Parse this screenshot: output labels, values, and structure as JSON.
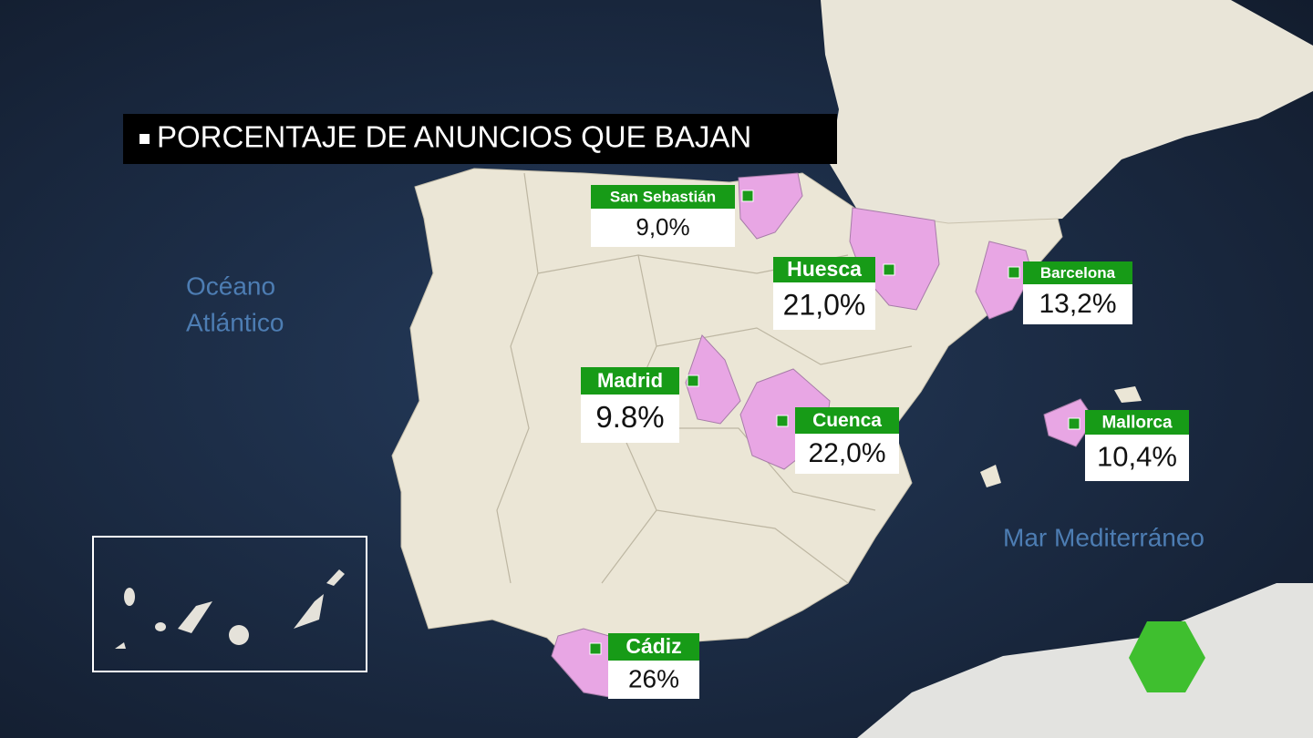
{
  "title": "PORCENTAJE DE ANUNCIOS QUE BAJAN",
  "ocean_labels": [
    "Océano",
    "Atlántico",
    "Mar Mediterráneo"
  ],
  "places": [
    {
      "name": "San Sebastián",
      "value": "9,0%"
    },
    {
      "name": "Huesca",
      "value": "21,0%"
    },
    {
      "name": "Barcelona",
      "value": "13,2%"
    },
    {
      "name": "Madrid",
      "value": "9.8%"
    },
    {
      "name": "Cuenca",
      "value": "22,0%"
    },
    {
      "name": "Mallorca",
      "value": "10,4%"
    },
    {
      "name": "Cádiz",
      "value": "26%"
    }
  ]
}
